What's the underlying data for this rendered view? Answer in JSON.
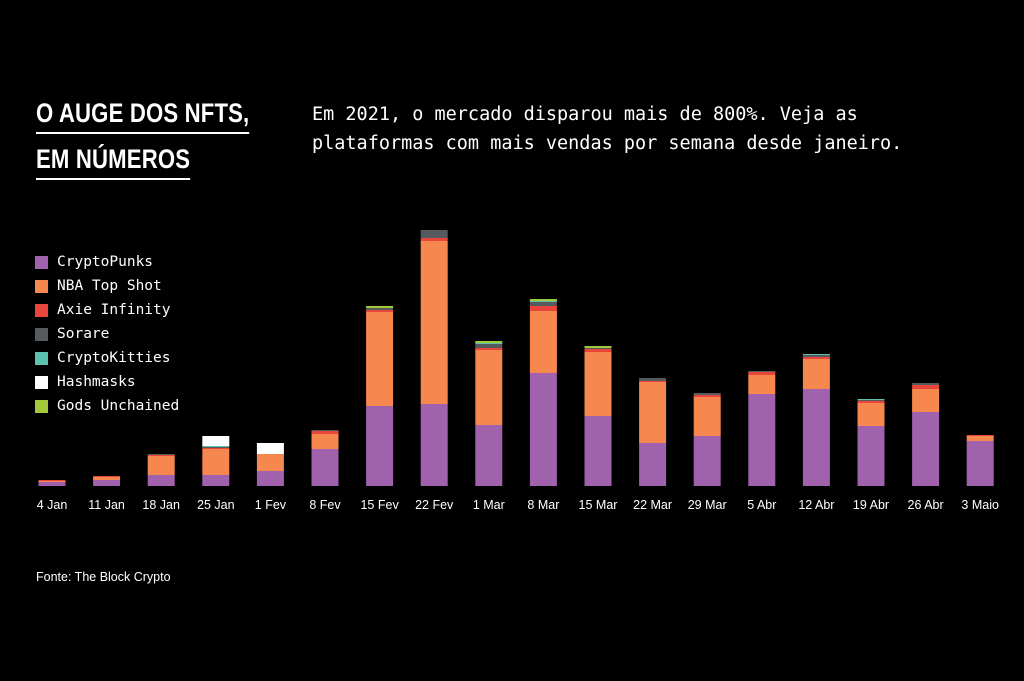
{
  "header": {
    "title_line1": "O AUGE DOS NFTS,",
    "title_line2": "EM NÚMEROS",
    "subtitle_line1": "Em 2021, o mercado disparou mais de 800%. Veja as",
    "subtitle_line2": "plataformas com mais vendas por semana desde janeiro."
  },
  "legend": [
    {
      "label": "CryptoPunks",
      "color": "#a061ad"
    },
    {
      "label": "NBA Top Shot",
      "color": "#f5874f"
    },
    {
      "label": "Axie Infinity",
      "color": "#e8463b"
    },
    {
      "label": "Sorare",
      "color": "#555a5e"
    },
    {
      "label": "CryptoKitties",
      "color": "#5cc1ad"
    },
    {
      "label": "Hashmasks",
      "color": "#ffffff"
    },
    {
      "label": "Gods Unchained",
      "color": "#a3c93a"
    }
  ],
  "source": "Fonte: The Block Crypto",
  "chart_data": {
    "type": "bar",
    "stacked": true,
    "categories": [
      "4 Jan",
      "11 Jan",
      "18 Jan",
      "25 Jan",
      "1 Fev",
      "8 Fev",
      "15 Fev",
      "22 Fev",
      "1 Mar",
      "8 Mar",
      "15 Mar",
      "22 Mar",
      "29 Mar",
      "5 Abr",
      "12 Abr",
      "19 Abr",
      "26 Abr",
      "3 Maio"
    ],
    "series": [
      {
        "name": "CryptoPunks",
        "color": "#a061ad",
        "values": [
          4,
          6,
          11,
          11,
          15,
          37,
          80,
          82,
          61,
          113,
          70,
          43,
          50,
          92,
          97,
          60,
          74,
          45
        ]
      },
      {
        "name": "NBA Top Shot",
        "color": "#f5874f",
        "values": [
          1,
          3,
          19,
          26,
          17,
          15,
          94,
          163,
          75,
          62,
          64,
          61,
          39,
          19,
          30,
          23,
          23,
          5
        ]
      },
      {
        "name": "Axie Infinity",
        "color": "#e8463b",
        "values": [
          1,
          1,
          1,
          1,
          0,
          3,
          2,
          3,
          2,
          5,
          3,
          1,
          2,
          3,
          2,
          2,
          4,
          1
        ]
      },
      {
        "name": "Sorare",
        "color": "#555a5e",
        "values": [
          0,
          0,
          1,
          1,
          0,
          1,
          2,
          8,
          4,
          4,
          1,
          3,
          2,
          1,
          2,
          1,
          2,
          0
        ]
      },
      {
        "name": "CryptoKitties",
        "color": "#5cc1ad",
        "values": [
          0,
          0,
          0,
          1,
          0,
          0,
          0,
          0,
          1,
          1,
          0,
          0,
          0,
          0,
          1,
          1,
          0,
          0
        ]
      },
      {
        "name": "Hashmasks",
        "color": "#ffffff",
        "values": [
          0,
          0,
          0,
          10,
          11,
          0,
          0,
          0,
          0,
          0,
          0,
          0,
          0,
          0,
          0,
          0,
          0,
          0
        ]
      },
      {
        "name": "Gods Unchained",
        "color": "#a3c93a",
        "values": [
          0,
          0,
          0,
          0,
          0,
          0,
          2,
          0,
          2,
          2,
          2,
          0,
          0,
          0,
          0,
          0,
          0,
          0
        ]
      }
    ],
    "grid": false,
    "legend_position": "left",
    "xlabel": "",
    "ylabel": "",
    "ylim": [
      0,
      260
    ]
  }
}
